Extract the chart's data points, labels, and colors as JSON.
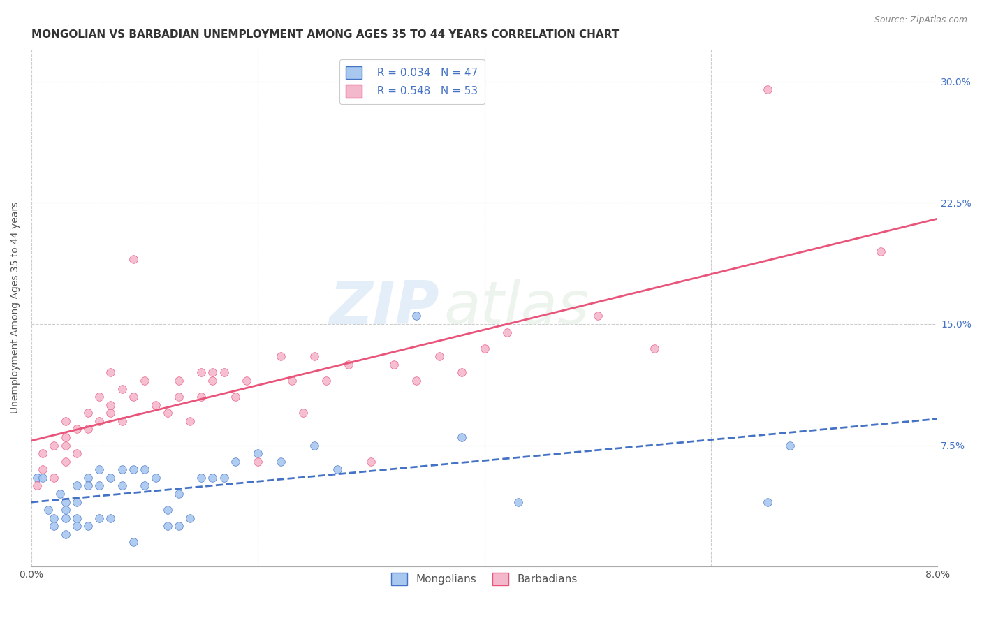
{
  "title": "MONGOLIAN VS BARBADIAN UNEMPLOYMENT AMONG AGES 35 TO 44 YEARS CORRELATION CHART",
  "source": "Source: ZipAtlas.com",
  "ylabel": "Unemployment Among Ages 35 to 44 years",
  "xlim": [
    0.0,
    0.08
  ],
  "ylim": [
    0.0,
    0.32
  ],
  "mongolian_color": "#a8c8f0",
  "barbadian_color": "#f4b8cc",
  "mongolian_line_color": "#4472c4",
  "barbadian_line_color": "#e8547a",
  "legend_R_mongolian": "R = 0.034",
  "legend_N_mongolian": "N = 47",
  "legend_R_barbadian": "R = 0.548",
  "legend_N_barbadian": "N = 53",
  "mongolian_x": [
    0.0005,
    0.001,
    0.0015,
    0.002,
    0.002,
    0.0025,
    0.003,
    0.003,
    0.003,
    0.003,
    0.004,
    0.004,
    0.004,
    0.004,
    0.005,
    0.005,
    0.005,
    0.006,
    0.006,
    0.006,
    0.007,
    0.007,
    0.008,
    0.008,
    0.009,
    0.009,
    0.01,
    0.01,
    0.011,
    0.012,
    0.012,
    0.013,
    0.013,
    0.014,
    0.015,
    0.016,
    0.017,
    0.018,
    0.02,
    0.022,
    0.025,
    0.027,
    0.034,
    0.038,
    0.043,
    0.065,
    0.067
  ],
  "mongolian_y": [
    0.055,
    0.055,
    0.035,
    0.03,
    0.025,
    0.045,
    0.04,
    0.035,
    0.03,
    0.02,
    0.05,
    0.04,
    0.03,
    0.025,
    0.055,
    0.05,
    0.025,
    0.06,
    0.05,
    0.03,
    0.055,
    0.03,
    0.06,
    0.05,
    0.06,
    0.015,
    0.06,
    0.05,
    0.055,
    0.035,
    0.025,
    0.045,
    0.025,
    0.03,
    0.055,
    0.055,
    0.055,
    0.065,
    0.07,
    0.065,
    0.075,
    0.06,
    0.155,
    0.08,
    0.04,
    0.04,
    0.075
  ],
  "barbadian_x": [
    0.0005,
    0.001,
    0.001,
    0.002,
    0.002,
    0.003,
    0.003,
    0.003,
    0.003,
    0.004,
    0.004,
    0.005,
    0.005,
    0.006,
    0.006,
    0.007,
    0.007,
    0.007,
    0.008,
    0.008,
    0.009,
    0.009,
    0.01,
    0.011,
    0.012,
    0.013,
    0.013,
    0.014,
    0.015,
    0.015,
    0.016,
    0.016,
    0.017,
    0.018,
    0.019,
    0.02,
    0.022,
    0.023,
    0.024,
    0.025,
    0.026,
    0.028,
    0.03,
    0.032,
    0.034,
    0.036,
    0.038,
    0.04,
    0.042,
    0.05,
    0.055,
    0.065,
    0.075
  ],
  "barbadian_y": [
    0.05,
    0.06,
    0.07,
    0.055,
    0.075,
    0.065,
    0.075,
    0.08,
    0.09,
    0.07,
    0.085,
    0.085,
    0.095,
    0.09,
    0.105,
    0.095,
    0.12,
    0.1,
    0.09,
    0.11,
    0.105,
    0.19,
    0.115,
    0.1,
    0.095,
    0.115,
    0.105,
    0.09,
    0.105,
    0.12,
    0.12,
    0.115,
    0.12,
    0.105,
    0.115,
    0.065,
    0.13,
    0.115,
    0.095,
    0.13,
    0.115,
    0.125,
    0.065,
    0.125,
    0.115,
    0.13,
    0.12,
    0.135,
    0.145,
    0.155,
    0.135,
    0.295,
    0.195
  ],
  "watermark_zip": "ZIP",
  "watermark_atlas": "atlas",
  "background_color": "#ffffff",
  "grid_color": "#cccccc",
  "title_fontsize": 11,
  "axis_fontsize": 10,
  "tick_fontsize": 10,
  "legend_fontsize": 11
}
